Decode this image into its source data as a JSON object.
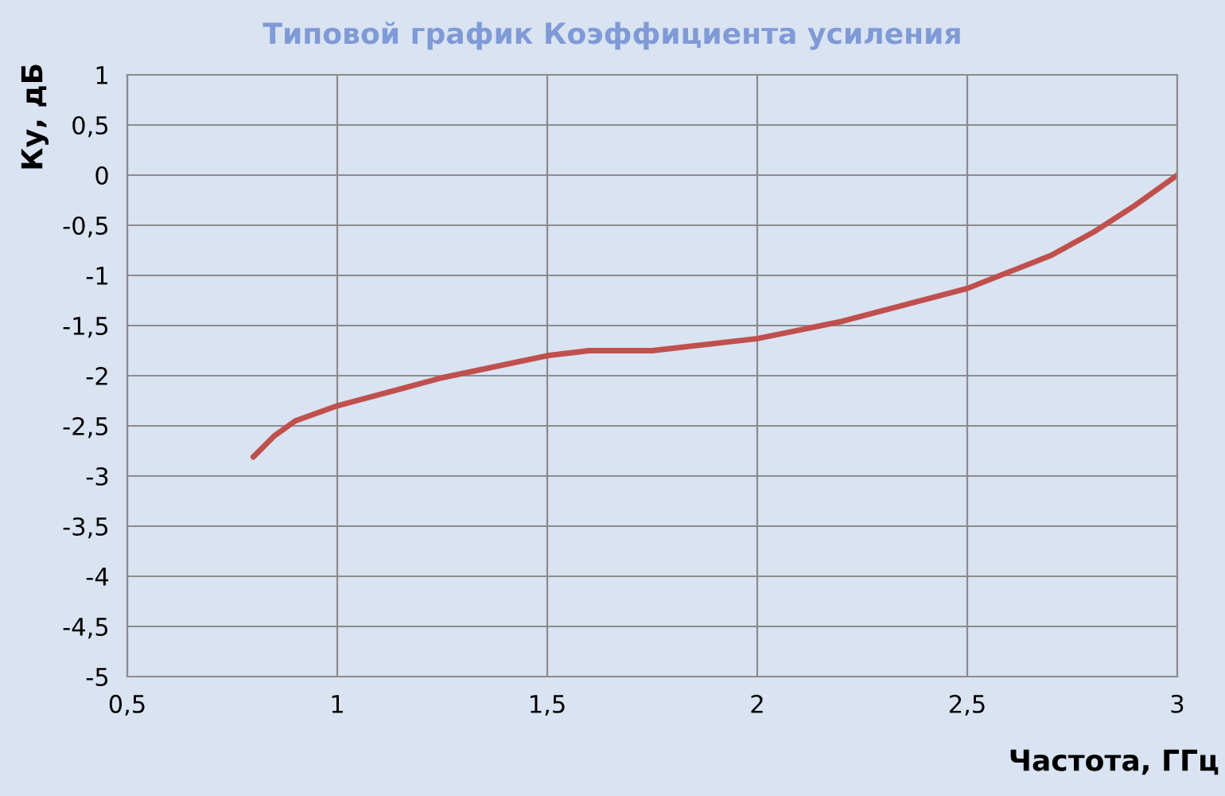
{
  "chart_data": {
    "type": "line",
    "title": "Типовой график Коэффициента усиления",
    "xlabel": "Частота, ГГц",
    "ylabel": "Ку, дБ",
    "series": [
      {
        "color": "#c0504d",
        "x": [
          0.8,
          0.85,
          0.9,
          1.0,
          1.25,
          1.5,
          1.6,
          1.75,
          2.0,
          2.2,
          2.5,
          2.7,
          2.8,
          2.9,
          3.0
        ],
        "values": [
          -2.81,
          -2.6,
          -2.45,
          -2.3,
          -2.02,
          -1.8,
          -1.75,
          -1.75,
          -1.63,
          -1.46,
          -1.13,
          -0.8,
          -0.57,
          -0.3,
          0
        ]
      }
    ],
    "xlim": [
      0.5,
      3
    ],
    "xticks": [
      {
        "value": 0.5,
        "label": "0,5"
      },
      1,
      {
        "value": 1.5,
        "label": "1,5"
      },
      2,
      {
        "value": 2.5,
        "label": "2,5"
      },
      3
    ],
    "ylim": [
      -5,
      1
    ],
    "yticks": [
      -5,
      {
        "value": -4.5,
        "label": "-4,5"
      },
      -4,
      {
        "value": -3.5,
        "label": "-3,5"
      },
      -3,
      {
        "value": -2.5,
        "label": "-2,5"
      },
      -2,
      {
        "value": -1.5,
        "label": "-1,5"
      },
      -1,
      {
        "value": -0.5,
        "label": "-0,5"
      },
      0,
      {
        "value": 0.5,
        "label": "0,5"
      },
      1
    ],
    "grid": true,
    "legend": false,
    "marker": "none",
    "line_style": "solid"
  }
}
